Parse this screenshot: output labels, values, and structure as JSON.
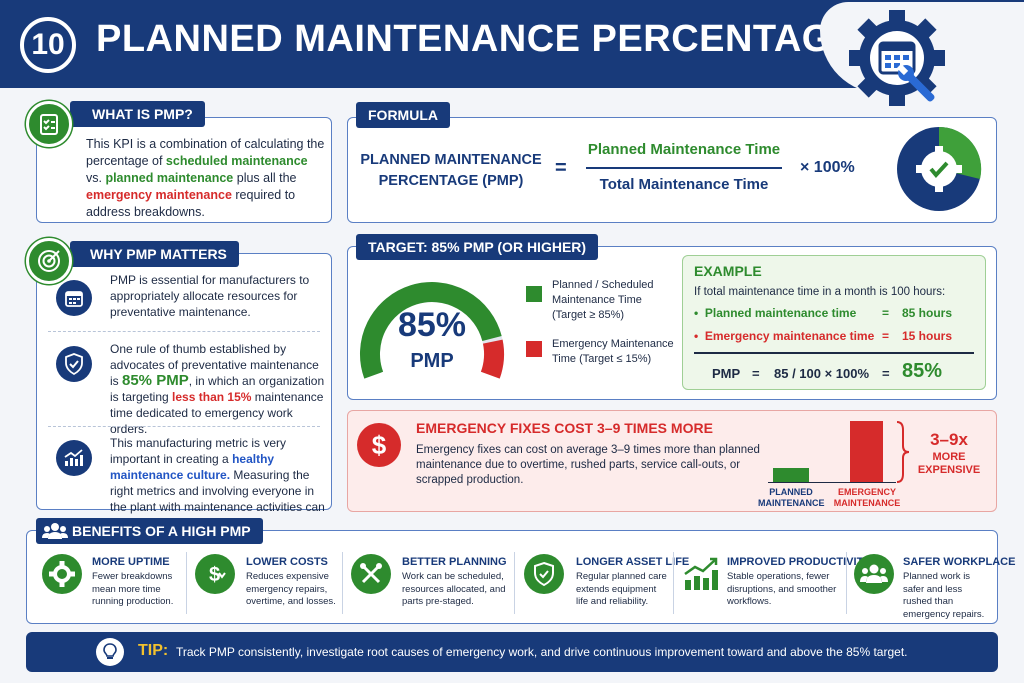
{
  "header": {
    "number": "10",
    "title": "PLANNED MAINTENANCE PERCENTAGE (PMP)"
  },
  "what": {
    "title": "WHAT IS PMP?",
    "t1": "This KPI is a combination of calculating the percentage of ",
    "t2": "scheduled maintenance",
    "t3": " vs. ",
    "t4": "planned maintenance",
    "t5": " plus all the ",
    "t6": "emergency maintenance",
    "t7": " required to address breakdowns."
  },
  "formula": {
    "title": "FORMULA",
    "lhs": "PLANNED MAINTENANCE PERCENTAGE (PMP)",
    "eq": "=",
    "numerator": "Planned Maintenance Time",
    "denominator": "Total Maintenance Time",
    "mult": "× 100%"
  },
  "why": {
    "title": "WHY PMP MATTERS",
    "p1": "PMP is essential for manufacturers to appropriately allocate resources for preventative maintenance.",
    "p2a": "One rule of thumb established by advocates of preventative maintenance is ",
    "p2b": "85% PMP",
    ", in which an organization is targeting ": "",
    "p2c": ", in which an organization is targeting ",
    "p2d": "less than 15%",
    "p2e": " maintenance time dedicated to emergency work orders.",
    "p3a": "This manufacturing metric is very important in creating a ",
    "p3b": "healthy maintenance culture.",
    "p3c": " Measuring the right metrics and involving everyone in the plant with maintenance activities can make a big impact."
  },
  "target": {
    "title": "TARGET: 85% PMP (OR HIGHER)",
    "gauge_value": "85%",
    "gauge_label": "PMP",
    "gauge_fraction": 0.85,
    "legend": [
      {
        "label": "Planned / Scheduled Maintenance Time (Target ≥ 85%)",
        "color": "#2e8b2e"
      },
      {
        "label": "Emergency Maintenance Time (Target ≤ 15%)",
        "color": "#d62b2b"
      }
    ]
  },
  "example": {
    "title": "EXAMPLE",
    "intro": "If total maintenance time in a month is 100 hours:",
    "rows": [
      {
        "label": "Planned maintenance time",
        "eq": "=",
        "value": "85 hours"
      },
      {
        "label": "Emergency maintenance time",
        "eq": "=",
        "value": "15 hours"
      }
    ],
    "calc_label": "PMP",
    "calc_eq": "=",
    "calc_expr": "85 / 100 × 100%",
    "calc_eq2": "=",
    "calc_result": "85%"
  },
  "emergency": {
    "title": "EMERGENCY FIXES COST 3–9 TIMES MORE",
    "body": "Emergency fixes can cost on average 3–9 times more than planned maintenance due to overtime, rushed parts, service call-outs, or scrapped production.",
    "bar_planned": "PLANNED MAINTENANCE",
    "bar_emergency": "EMERGENCY MAINTENANCE",
    "multiplier": "3–9x",
    "more": "MORE EXPENSIVE"
  },
  "benefits": {
    "title": "BENEFITS OF A HIGH PMP",
    "items": [
      {
        "title": "MORE UPTIME",
        "desc": "Fewer breakdowns mean more time running production.",
        "icon": "gear-check-icon"
      },
      {
        "title": "LOWER COSTS",
        "desc": "Reduces expensive emergency repairs, overtime, and losses.",
        "icon": "dollar-icon"
      },
      {
        "title": "BETTER PLANNING",
        "desc": "Work can be scheduled, resources allocated, and parts pre-staged.",
        "icon": "tools-icon"
      },
      {
        "title": "LONGER ASSET LIFE",
        "desc": "Regular planned care extends equipment life and reliability.",
        "icon": "shield-icon"
      },
      {
        "title": "IMPROVED PRODUCTIVITY",
        "desc": "Stable operations, fewer disruptions, and smoother workflows.",
        "icon": "chart-icon"
      },
      {
        "title": "SAFER WORKPLACE",
        "desc": "Planned work is safer and less rushed than emergency repairs.",
        "icon": "people-icon"
      }
    ]
  },
  "tip": {
    "label": "TIP:",
    "text": "Track PMP consistently, investigate root causes of emergency work, and drive continuous improvement toward and above the 85% target."
  }
}
